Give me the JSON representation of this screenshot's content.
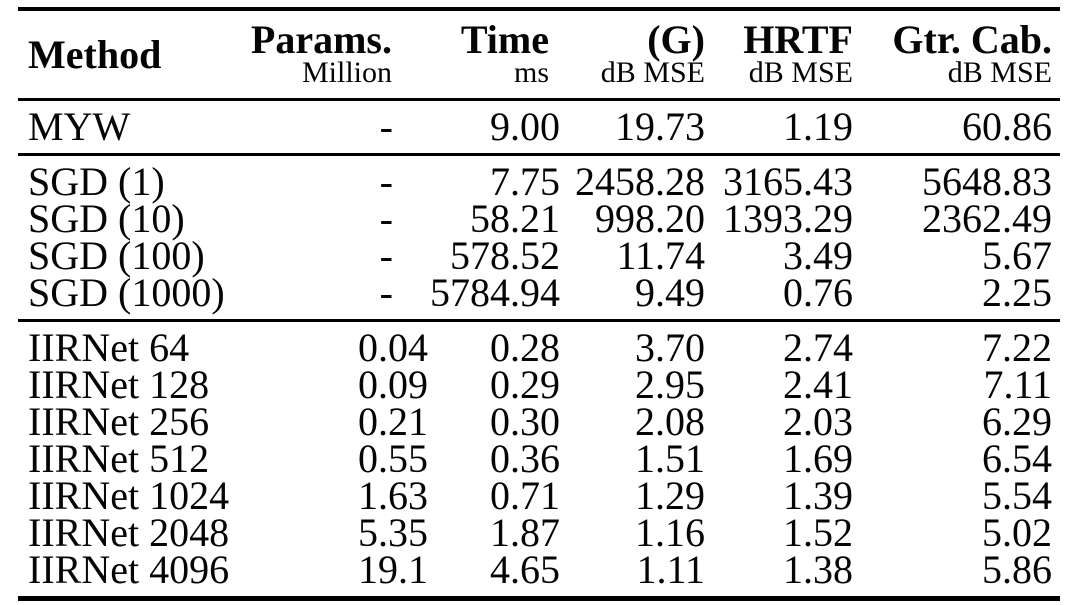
{
  "table": {
    "columns": [
      {
        "label": "Method",
        "sublabel": ""
      },
      {
        "label": "Params.",
        "sublabel": "Million"
      },
      {
        "label": "Time",
        "sublabel": "ms"
      },
      {
        "label": "(G)",
        "sublabel": "dB MSE"
      },
      {
        "label": "HRTF",
        "sublabel": "dB MSE"
      },
      {
        "label": "Gtr. Cab.",
        "sublabel": "dB MSE"
      }
    ],
    "groups": [
      {
        "name": "myw",
        "rows": [
          [
            "MYW",
            "-",
            "9.00",
            "19.73",
            "1.19",
            "60.86"
          ]
        ]
      },
      {
        "name": "sgd",
        "rows": [
          [
            "SGD (1)",
            "-",
            "7.75",
            "2458.28",
            "3165.43",
            "5648.83"
          ],
          [
            "SGD (10)",
            "-",
            "58.21",
            "998.20",
            "1393.29",
            "2362.49"
          ],
          [
            "SGD (100)",
            "-",
            "578.52",
            "11.74",
            "3.49",
            "5.67"
          ],
          [
            "SGD (1000)",
            "-",
            "5784.94",
            "9.49",
            "0.76",
            "2.25"
          ]
        ]
      },
      {
        "name": "iirnet",
        "rows": [
          [
            "IIRNet 64",
            "0.04",
            "0.28",
            "3.70",
            "2.74",
            "7.22"
          ],
          [
            "IIRNet 128",
            "0.09",
            "0.29",
            "2.95",
            "2.41",
            "7.11"
          ],
          [
            "IIRNet 256",
            "0.21",
            "0.30",
            "2.08",
            "2.03",
            "6.29"
          ],
          [
            "IIRNet 512",
            "0.55",
            "0.36",
            "1.51",
            "1.69",
            "6.54"
          ],
          [
            "IIRNet 1024",
            "1.63",
            "0.71",
            "1.29",
            "1.39",
            "5.54"
          ],
          [
            "IIRNet 2048",
            "5.35",
            "1.87",
            "1.16",
            "1.52",
            "5.02"
          ],
          [
            "IIRNet 4096",
            "19.1",
            "4.65",
            "1.11",
            "1.38",
            "5.86"
          ]
        ]
      }
    ],
    "colors": {
      "text": "#050505",
      "background": "#ffffff",
      "rule": "#000000"
    }
  }
}
